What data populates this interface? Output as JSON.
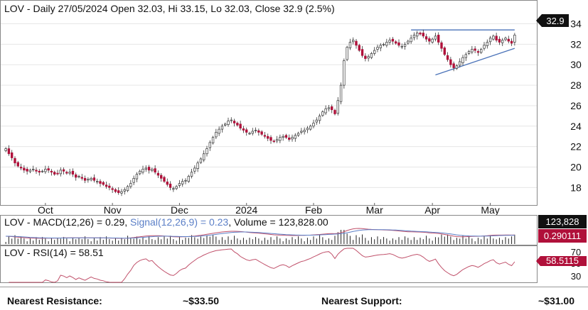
{
  "chart_data": {
    "type": "candlestick",
    "title": "LOV - Daily 27/05/2024 Open 32.03, Hi 33.15, Lo 32.03, Close 32.9 (2.5%)",
    "last_price_label": "32.9",
    "x_tick_labels": [
      "Oct",
      "Nov",
      "Dec",
      "2024",
      "Feb",
      "Mar",
      "Apr",
      "May"
    ],
    "y_tick_labels": [
      "18",
      "20",
      "22",
      "24",
      "26",
      "28",
      "30",
      "32",
      "34"
    ],
    "ylim": [
      16.5,
      34.8
    ],
    "closes": [
      21.8,
      21.3,
      20.9,
      20.4,
      20.1,
      19.9,
      19.7,
      19.6,
      19.7,
      19.8,
      19.6,
      19.5,
      19.6,
      19.8,
      19.7,
      19.5,
      19.3,
      19.4,
      19.7,
      19.6,
      19.4,
      19.5,
      19.3,
      19.0,
      19.1,
      18.9,
      18.7,
      18.8,
      18.9,
      18.7,
      18.6,
      18.4,
      18.3,
      18.1,
      18.0,
      17.8,
      17.6,
      17.5,
      17.6,
      17.8,
      18.1,
      18.4,
      18.9,
      19.3,
      19.6,
      19.8,
      19.9,
      19.7,
      19.8,
      19.5,
      19.2,
      18.9,
      18.6,
      18.3,
      18.0,
      17.9,
      18.1,
      18.4,
      18.6,
      18.7,
      19.1,
      19.5,
      19.9,
      20.4,
      20.8,
      21.3,
      21.8,
      22.4,
      22.9,
      23.4,
      23.7,
      24.0,
      24.2,
      24.5,
      24.6,
      24.3,
      24.1,
      23.8,
      23.6,
      23.4,
      23.3,
      23.5,
      23.6,
      23.4,
      23.2,
      23.0,
      22.8,
      22.6,
      22.5,
      22.7,
      22.9,
      23.0,
      22.9,
      22.7,
      22.9,
      23.1,
      23.3,
      23.5,
      23.6,
      23.8,
      24.0,
      24.3,
      24.6,
      25.0,
      25.4,
      25.7,
      25.8,
      25.6,
      25.2,
      26.5,
      28.0,
      30.4,
      31.7,
      32.2,
      32.4,
      31.9,
      31.4,
      30.9,
      30.6,
      30.8,
      31.1,
      31.4,
      31.7,
      31.9,
      32.0,
      32.2,
      32.4,
      32.3,
      32.1,
      31.9,
      31.8,
      32.0,
      32.3,
      32.6,
      32.9,
      33.1,
      33.0,
      32.8,
      32.5,
      32.3,
      32.5,
      32.8,
      32.2,
      31.6,
      31.0,
      30.5,
      30.0,
      29.7,
      29.9,
      30.3,
      30.7,
      31.0,
      31.3,
      31.5,
      31.4,
      31.2,
      31.5,
      31.9,
      32.2,
      32.6,
      32.8,
      32.4,
      32.2,
      32.4,
      32.6,
      32.3,
      32.1,
      32.9
    ],
    "volume_label": "123,828",
    "macd_label": "0.290111",
    "rsi_label": "58.5115",
    "rsi_y_tick_labels": [
      "70",
      "50",
      "30"
    ]
  },
  "indicators": {
    "macd_text": "LOV - MACD(12,26) = 0.29, ",
    "signal_text": "Signal(12,26,9) = 0.23",
    "volume_text": ", Volume = 123,828.00",
    "rsi_text": "LOV - RSI(14) = 58.51"
  },
  "colors": {
    "up": "#ffffff",
    "down": "#b0103a",
    "resistance": "#4a72b8",
    "macd": "#c0506a",
    "signal": "#5b7fc7",
    "rsi": "#c0506a"
  },
  "footer": {
    "resistance_label": "Nearest Resistance:",
    "resistance_value": "~$33.50",
    "support_label": "Nearest Support:",
    "support_value": "~$31.00"
  }
}
